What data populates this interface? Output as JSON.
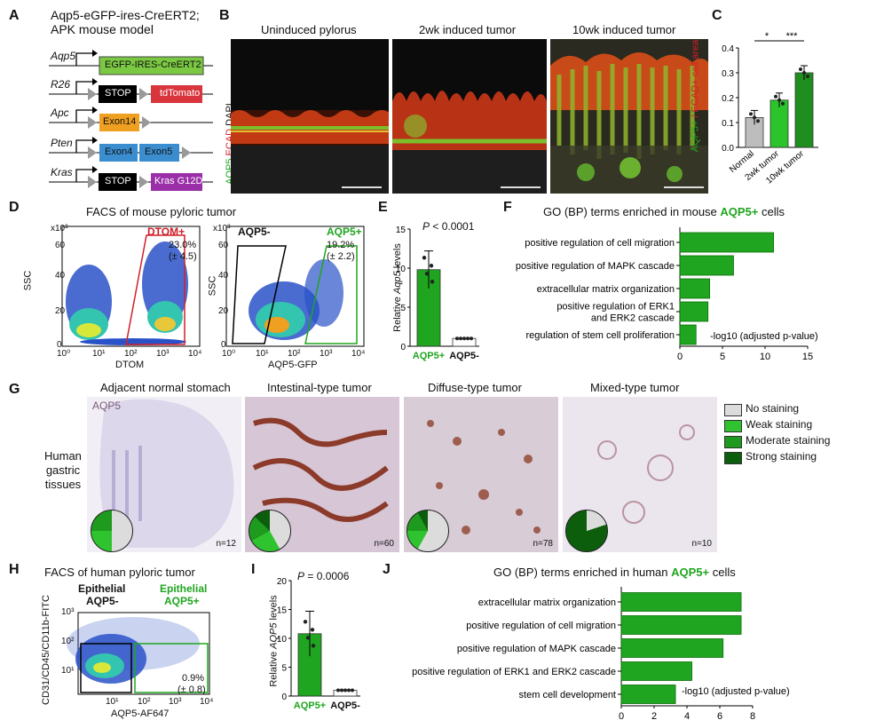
{
  "panelA": {
    "letter": "A",
    "title": "Aqp5-eGFP-ires-CreERT2;\nAPK mouse model",
    "genes": [
      "Aqp5",
      "R26",
      "Apc",
      "Pten",
      "Kras"
    ],
    "constructs": {
      "aqp5": "EGFP-IRES-CreERT2",
      "r26_stop": "STOP",
      "r26_td": "tdTomato",
      "apc": "Exon14",
      "pten1": "Exon4",
      "pten2": "Exon5",
      "kras_stop": "STOP",
      "kras_g12d": "Kras G12D"
    }
  },
  "panelB": {
    "letter": "B",
    "titles": [
      "Uninduced pylorus",
      "2wk induced tumor",
      "10wk induced tumor"
    ],
    "side_labels": {
      "aqp5": "AQP5",
      "ecad": "ECAD",
      "dapi": "DAPI"
    }
  },
  "panelC": {
    "letter": "C",
    "ylabel_green": "AQP5+",
    "ylabel_rest": " / ECAD+ cell area",
    "sig1": "*",
    "sig2": "***",
    "chart_data": {
      "type": "bar",
      "categories": [
        "Normal",
        "2wk tumor",
        "10wk tumor"
      ],
      "values": [
        0.12,
        0.19,
        0.3
      ],
      "ylim": [
        0,
        0.4
      ],
      "yticks": [
        "0.0",
        "0.1",
        "0.2",
        "0.3",
        "0.4"
      ],
      "colors": [
        "#bdbdbd",
        "#2bc52b",
        "#1e8f1e"
      ]
    }
  },
  "panelD": {
    "letter": "D",
    "title": "FACS of mouse pyloric tumor",
    "left": {
      "gate": "DTOM+",
      "pct": "23.0%",
      "sd": "(± 4.5)",
      "xlabel": "DTOM",
      "ylabel": "SSC",
      "scale": "x10³",
      "yticks": [
        "0",
        "20",
        "40",
        "60"
      ],
      "xticks": [
        "10⁰",
        "10¹",
        "10²",
        "10³",
        "10⁴"
      ]
    },
    "right": {
      "gate_neg": "AQP5-",
      "gate_pos": "AQP5+",
      "pct": "19.2%",
      "sd": "(± 2.2)",
      "xlabel": "AQP5-GFP",
      "ylabel": "SSC",
      "scale": "x10³",
      "yticks": [
        "0",
        "20",
        "40",
        "60"
      ],
      "xticks": [
        "10⁰",
        "10¹",
        "10²",
        "10³",
        "10⁴"
      ]
    }
  },
  "panelE": {
    "letter": "E",
    "pvalue_p": "P",
    "pvalue_rest": " < 0.0001",
    "ylabel_pre": "Relative ",
    "ylabel_it": "Aqp5",
    "ylabel_post": " levels",
    "chart_data": {
      "type": "bar",
      "categories": [
        "AQP5+",
        "AQP5-"
      ],
      "values": [
        9.8,
        1.0
      ],
      "errors": [
        2.4,
        0.0
      ],
      "ylim": [
        0,
        15
      ],
      "yticks": [
        "0",
        "5",
        "10",
        "15"
      ]
    }
  },
  "panelF": {
    "letter": "F",
    "title_pre": "GO (BP) terms enriched in mouse ",
    "title_hl": "AQP5+",
    "title_post": " cells",
    "xlabel": "-log10 (adjusted p-value)",
    "chart_data": {
      "type": "bar",
      "categories": [
        "positive regulation of cell migration",
        "positive regulation of MAPK cascade",
        "extracellular matrix organization",
        "positive regulation of ERK1\nand ERK2 cascade",
        "regulation of stem cell proliferation"
      ],
      "values": [
        11.0,
        6.3,
        3.5,
        3.3,
        1.9
      ],
      "xlim": [
        0,
        15
      ],
      "xticks": [
        "0",
        "5",
        "10",
        "15"
      ]
    }
  },
  "panelG": {
    "letter": "G",
    "stain": "AQP5",
    "side_label": "Human\ngastric\ntissues",
    "titles": [
      "Adjacent normal stomach",
      "Intestinal-type tumor",
      "Diffuse-type tumor",
      "Mixed-type tumor"
    ],
    "counts": [
      "n=12",
      "n=60",
      "n=78",
      "n=10"
    ],
    "legend": [
      "No staining",
      "Weak staining",
      "Moderate staining",
      "Strong staining"
    ],
    "legend_colors": [
      "#dcdcdc",
      "#2fc42f",
      "#1e9a1e",
      "#0c5e0c"
    ],
    "pies": [
      [
        0.5,
        0.25,
        0.25,
        0.0
      ],
      [
        0.42,
        0.25,
        0.2,
        0.13
      ],
      [
        0.58,
        0.17,
        0.17,
        0.08
      ],
      [
        0.2,
        0.0,
        0.0,
        0.8
      ]
    ]
  },
  "panelH": {
    "letter": "H",
    "title": "FACS of human pyloric tumor",
    "neg_line1": "Epithelial",
    "neg_line2": "AQP5-",
    "pos_line1": "Epithelial",
    "pos_line2": "AQP5+",
    "pct": "0.9%",
    "sd": "(± 0.8)",
    "xlabel": "AQP5-AF647",
    "ylabel": "CD31/CD45/CD11b-FITC",
    "yticks": [
      "10¹",
      "10²",
      "10³"
    ],
    "xticks": [
      "10¹",
      "10²",
      "10³",
      "10⁴"
    ]
  },
  "panelI": {
    "letter": "I",
    "pvalue_p": "P",
    "pvalue_rest": " = 0.0006",
    "ylabel_pre": "Relative ",
    "ylabel_it": "AQP5",
    "ylabel_post": " levels",
    "chart_data": {
      "type": "bar",
      "categories": [
        "AQP5+",
        "AQP5-"
      ],
      "values": [
        10.8,
        1.0
      ],
      "errors": [
        3.9,
        0.0
      ],
      "ylim": [
        0,
        20
      ],
      "yticks": [
        "0",
        "5",
        "10",
        "15",
        "20"
      ]
    }
  },
  "panelJ": {
    "letter": "J",
    "title_pre": "GO (BP) terms enriched in human ",
    "title_hl": "AQP5+",
    "title_post": " cells",
    "xlabel": "-log10 (adjusted p-value)",
    "chart_data": {
      "type": "bar",
      "categories": [
        "extracellular matrix organization",
        "positive regulation of cell migration",
        "positive regulation of MAPK cascade",
        "positive regulation of ERK1 and ERK2 cascade",
        "stem cell development"
      ],
      "values": [
        7.3,
        7.3,
        6.2,
        4.3,
        3.3
      ],
      "xlim": [
        0,
        8
      ],
      "xticks": [
        "0",
        "2",
        "4",
        "6",
        "8"
      ]
    }
  }
}
